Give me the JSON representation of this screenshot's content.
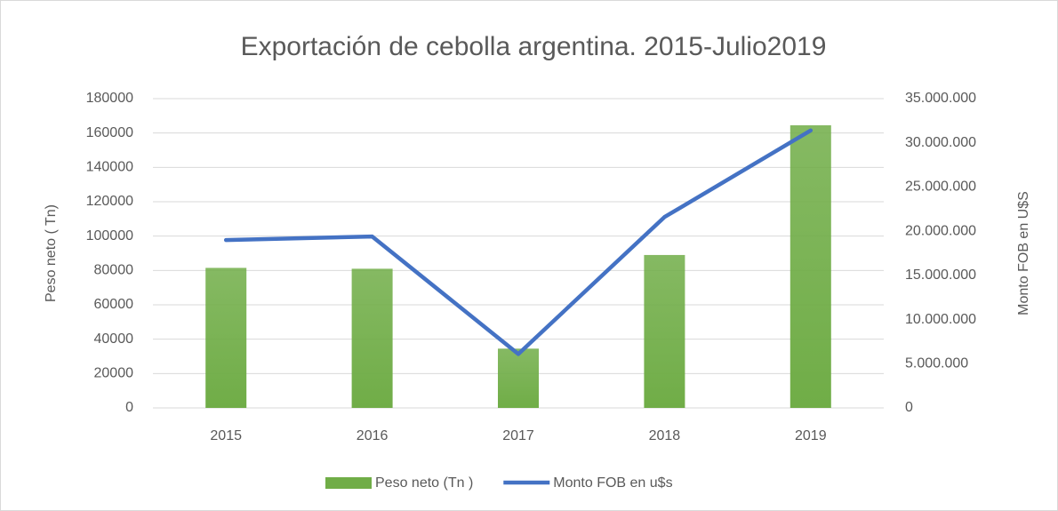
{
  "chart_data": {
    "type": "combo",
    "title": "Exportación de cebolla argentina. 2015-Julio2019",
    "categories": [
      "2015",
      "2016",
      "2017",
      "2018",
      "2019"
    ],
    "series": [
      {
        "name": "Peso neto (Tn )",
        "type": "bar",
        "axis": "y",
        "color": "#70ad47",
        "values": [
          81500,
          81000,
          34500,
          89000,
          164500
        ]
      },
      {
        "name": "Monto FOB en u$s",
        "type": "line",
        "axis": "y2",
        "color": "#4472c4",
        "values": [
          19000000,
          19400000,
          6100000,
          21600000,
          31400000
        ]
      }
    ],
    "ylabel": "Peso neto ( Tn)",
    "y2label": "Monto FOB en U$S",
    "ylim": [
      0,
      180000
    ],
    "yticks": [
      0,
      20000,
      40000,
      60000,
      80000,
      100000,
      120000,
      140000,
      160000,
      180000
    ],
    "y2lim": [
      0,
      35000000
    ],
    "y2ticks": [
      0,
      {
        "value": 5000000,
        "label": "5.000.000"
      },
      {
        "value": 10000000,
        "label": "10.000.000"
      },
      {
        "value": 15000000,
        "label": "15.000.000"
      },
      {
        "value": 20000000,
        "label": "20.000.000"
      },
      {
        "value": 25000000,
        "label": "25.000.000"
      },
      {
        "value": 30000000,
        "label": "30.000.000"
      },
      {
        "value": 35000000,
        "label": "35.000.000"
      }
    ],
    "grid": true,
    "legend": "bottom"
  }
}
